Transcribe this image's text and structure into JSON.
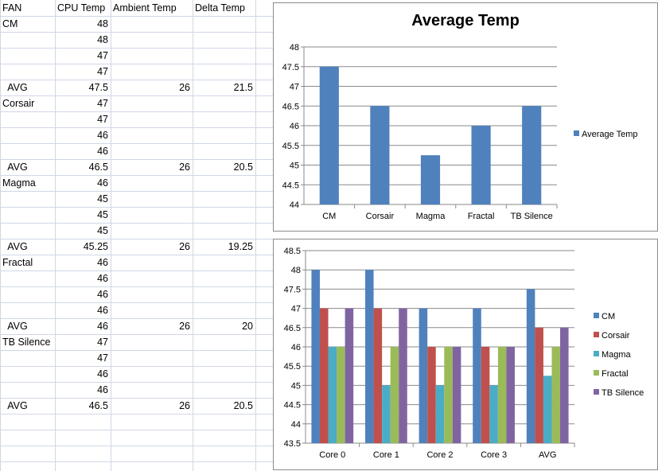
{
  "sheet": {
    "headers": [
      "FAN",
      "CPU Temp",
      "Ambient Temp",
      "Delta Temp"
    ],
    "rows": [
      [
        "CM",
        "48",
        "",
        ""
      ],
      [
        "",
        "48",
        "",
        ""
      ],
      [
        "",
        "47",
        "",
        ""
      ],
      [
        "",
        "47",
        "",
        ""
      ],
      [
        "  AVG",
        "47.5",
        "26",
        "21.5"
      ],
      [
        "Corsair",
        "47",
        "",
        ""
      ],
      [
        "",
        "47",
        "",
        ""
      ],
      [
        "",
        "46",
        "",
        ""
      ],
      [
        "",
        "46",
        "",
        ""
      ],
      [
        "  AVG",
        "46.5",
        "26",
        "20.5"
      ],
      [
        "Magma",
        "46",
        "",
        ""
      ],
      [
        "",
        "45",
        "",
        ""
      ],
      [
        "",
        "45",
        "",
        ""
      ],
      [
        "",
        "45",
        "",
        ""
      ],
      [
        "  AVG",
        "45.25",
        "26",
        "19.25"
      ],
      [
        "Fractal",
        "46",
        "",
        ""
      ],
      [
        "",
        "46",
        "",
        ""
      ],
      [
        "",
        "46",
        "",
        ""
      ],
      [
        "",
        "46",
        "",
        ""
      ],
      [
        "  AVG",
        "46",
        "26",
        "20"
      ],
      [
        "TB Silence",
        "47",
        "",
        ""
      ],
      [
        "",
        "47",
        "",
        ""
      ],
      [
        "",
        "46",
        "",
        ""
      ],
      [
        "",
        "46",
        "",
        ""
      ],
      [
        "  AVG",
        "46.5",
        "26",
        "20.5"
      ]
    ]
  },
  "chart_data": [
    {
      "type": "bar",
      "title": "Average Temp",
      "categories": [
        "CM",
        "Corsair",
        "Magma",
        "Fractal",
        "TB Silence"
      ],
      "series": [
        {
          "name": "Average Temp",
          "values": [
            47.5,
            46.5,
            45.25,
            46,
            46.5
          ],
          "color": "#4f81bd"
        }
      ],
      "ylim": [
        44,
        48
      ],
      "yticks": [
        "44",
        "44.5",
        "45",
        "45.5",
        "46",
        "46.5",
        "47",
        "47.5",
        "48"
      ],
      "grid": true,
      "legend": "right"
    },
    {
      "type": "bar",
      "title": "",
      "categories": [
        "Core 0",
        "Core 1",
        "Core 2",
        "Core 3",
        "AVG"
      ],
      "series": [
        {
          "name": "CM",
          "values": [
            48,
            48,
            47,
            47,
            47.5
          ],
          "color": "#4f81bd"
        },
        {
          "name": "Corsair",
          "values": [
            47,
            47,
            46,
            46,
            46.5
          ],
          "color": "#c0504d"
        },
        {
          "name": "Magma",
          "values": [
            46,
            45,
            45,
            45,
            45.25
          ],
          "color": "#4bacc6"
        },
        {
          "name": "Fractal",
          "values": [
            46,
            46,
            46,
            46,
            46
          ],
          "color": "#9bbb59"
        },
        {
          "name": "TB Silence",
          "values": [
            47,
            47,
            46,
            46,
            46.5
          ],
          "color": "#8064a2"
        }
      ],
      "ylim": [
        43.5,
        48.5
      ],
      "yticks": [
        "43.5",
        "44",
        "44.5",
        "45",
        "45.5",
        "46",
        "46.5",
        "47",
        "47.5",
        "48",
        "48.5"
      ],
      "grid": true,
      "legend": "right"
    }
  ]
}
